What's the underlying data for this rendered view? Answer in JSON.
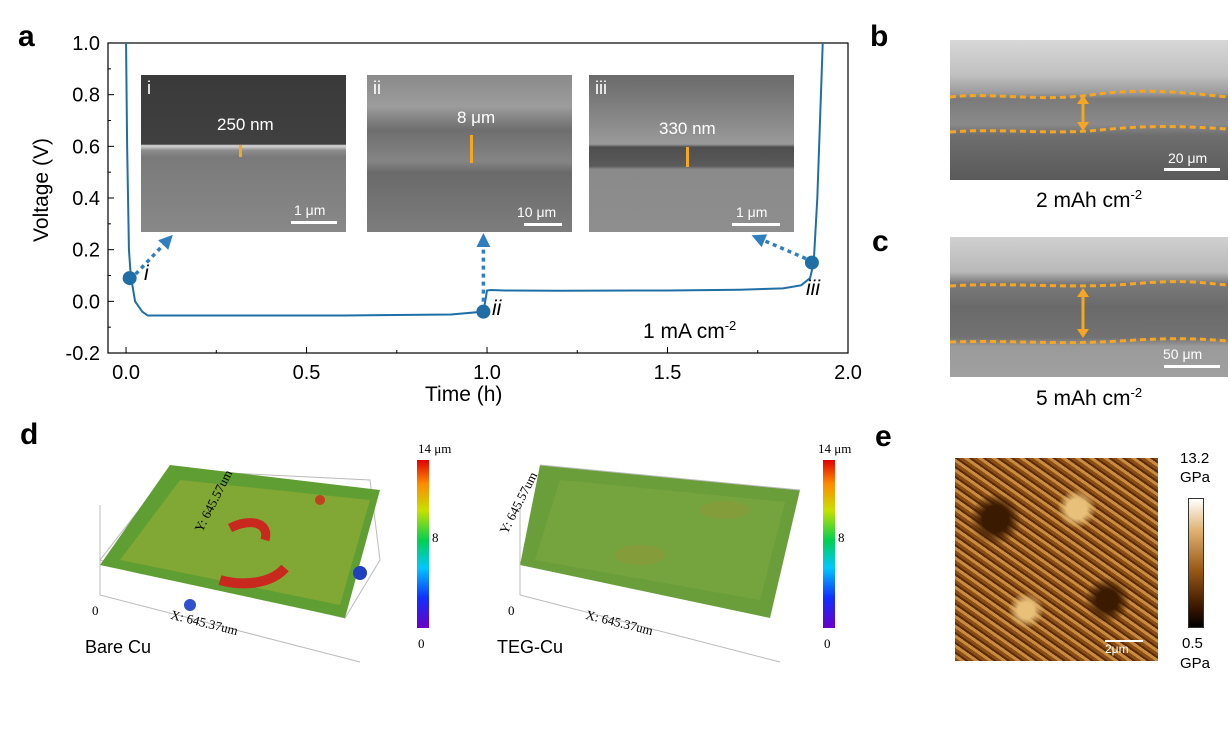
{
  "panels": {
    "a": "a",
    "b": "b",
    "c": "c",
    "d": "d",
    "e": "e"
  },
  "chart_data": {
    "type": "line",
    "xlabel": "Time (h)",
    "ylabel": "Voltage (V)",
    "xlim": [
      -0.05,
      2.0
    ],
    "ylim": [
      -0.2,
      1.0
    ],
    "xticks": [
      "0.0",
      "0.5",
      "1.0",
      "1.5",
      "2.0"
    ],
    "yticks": [
      "-0.2",
      "0.0",
      "0.2",
      "0.4",
      "0.6",
      "0.8",
      "1.0"
    ],
    "annotation": "1 mA cm",
    "annotation_sup": "-2",
    "series": [
      {
        "color": "#1f6fa6",
        "x": [
          0.0,
          0.003,
          0.008,
          0.013,
          0.025,
          0.045,
          0.06,
          0.3,
          0.6,
          0.9,
          0.99,
          0.995,
          1.0,
          1.01,
          1.05,
          1.2,
          1.5,
          1.7,
          1.82,
          1.87,
          1.895,
          1.905,
          1.915,
          1.925,
          1.93
        ],
        "y": [
          1.0,
          0.6,
          0.2,
          0.1,
          0.0,
          -0.04,
          -0.055,
          -0.055,
          -0.055,
          -0.051,
          -0.04,
          0.0,
          0.042,
          0.044,
          0.042,
          0.041,
          0.042,
          0.045,
          0.05,
          0.062,
          0.09,
          0.15,
          0.4,
          0.8,
          1.0
        ]
      }
    ],
    "markers": [
      {
        "x": 0.01,
        "y": 0.09,
        "label": "i"
      },
      {
        "x": 0.99,
        "y": -0.04,
        "label": "ii"
      },
      {
        "x": 1.9,
        "y": 0.15,
        "label": "iii"
      }
    ]
  },
  "insets": [
    {
      "tag": "i",
      "dimension": "250 nm",
      "scale": "1 μm"
    },
    {
      "tag": "ii",
      "dimension": "8 μm",
      "scale": "10 μm"
    },
    {
      "tag": "iii",
      "dimension": "330 nm",
      "scale": "1 μm"
    }
  ],
  "panel_b": {
    "scale": "20 μm",
    "caption": "2 mAh cm",
    "caption_sup": "-2"
  },
  "panel_c": {
    "scale": "50 μm",
    "caption": "5 mAh cm",
    "caption_sup": "-2"
  },
  "panel_d": {
    "left": {
      "name": "Bare Cu",
      "y_axis": "Y: 645.57um",
      "x_axis": "X: 645.37um",
      "origin": "0",
      "cb_max": "14 μm",
      "cb_mid": "8",
      "cb_min": "0"
    },
    "right": {
      "name": "TEG-Cu",
      "y_axis": "Y: 645.57um",
      "x_axis": "X: 645.37um",
      "origin": "0",
      "cb_max": "14 μm",
      "cb_mid": "8",
      "cb_min": "0"
    }
  },
  "panel_e": {
    "cb_max": "13.2",
    "cb_max_unit": "GPa",
    "cb_min": "0.5",
    "cb_min_unit": "GPa",
    "scale": "2μm"
  },
  "colors": {
    "curve": "#1f6fa6",
    "arrow": "#2f7fc0",
    "orange": "#f5a623",
    "afm_dark": "#2a1200",
    "afm_light": "#d9a55a"
  }
}
